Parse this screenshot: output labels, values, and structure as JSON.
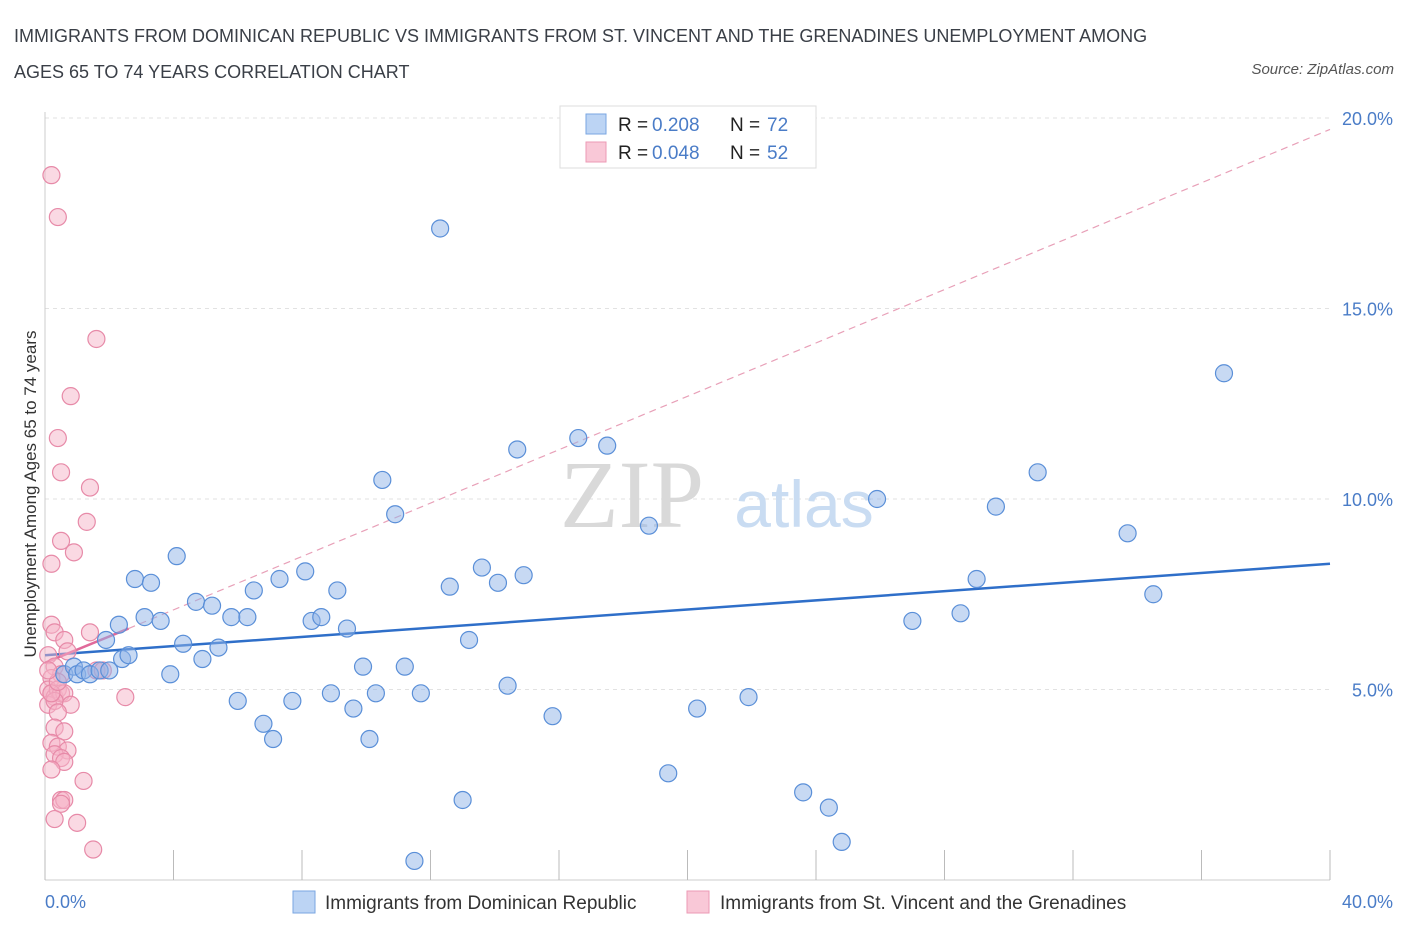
{
  "title_line1": "IMMIGRANTS FROM DOMINICAN REPUBLIC VS IMMIGRANTS FROM ST. VINCENT AND THE GRENADINES UNEMPLOYMENT AMONG",
  "title_line2": "AGES 65 TO 74 YEARS CORRELATION CHART",
  "source": "Source: ZipAtlas.com",
  "watermark": {
    "zip": "ZIP",
    "atlas": "atlas"
  },
  "chart_data": {
    "type": "scatter",
    "ylabel": "Unemployment Among Ages 65 to 74 years",
    "x_range": [
      0,
      40
    ],
    "y_range": [
      0,
      20
    ],
    "x_ticks": [
      "0.0%",
      "40.0%"
    ],
    "y_ticks": [
      "5.0%",
      "10.0%",
      "15.0%",
      "20.0%"
    ],
    "grid": true,
    "legend_position": "top-center",
    "series": [
      {
        "name": "Immigrants from Dominican Republic",
        "color": "#8fb4e8",
        "stroke": "#5a8fd8",
        "line_color": "#2f6fc9",
        "R": "0.208",
        "N": "72",
        "trend": [
          [
            0,
            5.9
          ],
          [
            40,
            8.3
          ]
        ],
        "points": [
          [
            0.6,
            5.4
          ],
          [
            0.9,
            5.6
          ],
          [
            1.0,
            5.4
          ],
          [
            1.2,
            5.5
          ],
          [
            1.4,
            5.4
          ],
          [
            1.7,
            5.5
          ],
          [
            1.9,
            6.3
          ],
          [
            2.0,
            5.5
          ],
          [
            2.3,
            6.7
          ],
          [
            2.4,
            5.8
          ],
          [
            2.6,
            5.9
          ],
          [
            2.8,
            7.9
          ],
          [
            3.1,
            6.9
          ],
          [
            3.3,
            7.8
          ],
          [
            3.6,
            6.8
          ],
          [
            3.9,
            5.4
          ],
          [
            4.1,
            8.5
          ],
          [
            4.3,
            6.2
          ],
          [
            4.7,
            7.3
          ],
          [
            4.9,
            5.8
          ],
          [
            5.2,
            7.2
          ],
          [
            5.4,
            6.1
          ],
          [
            5.8,
            6.9
          ],
          [
            6.0,
            4.7
          ],
          [
            6.3,
            6.9
          ],
          [
            6.5,
            7.6
          ],
          [
            6.8,
            4.1
          ],
          [
            7.1,
            3.7
          ],
          [
            7.3,
            7.9
          ],
          [
            7.7,
            4.7
          ],
          [
            8.1,
            8.1
          ],
          [
            8.3,
            6.8
          ],
          [
            8.6,
            6.9
          ],
          [
            8.9,
            4.9
          ],
          [
            9.1,
            7.6
          ],
          [
            9.4,
            6.6
          ],
          [
            9.6,
            4.5
          ],
          [
            9.9,
            5.6
          ],
          [
            10.1,
            3.7
          ],
          [
            10.3,
            4.9
          ],
          [
            10.5,
            10.5
          ],
          [
            10.9,
            9.6
          ],
          [
            11.2,
            5.6
          ],
          [
            11.7,
            4.9
          ],
          [
            12.3,
            17.1
          ],
          [
            12.6,
            7.7
          ],
          [
            13.0,
            2.1
          ],
          [
            13.2,
            6.3
          ],
          [
            13.6,
            8.2
          ],
          [
            14.1,
            7.8
          ],
          [
            14.4,
            5.1
          ],
          [
            14.7,
            11.3
          ],
          [
            14.9,
            8.0
          ],
          [
            15.8,
            4.3
          ],
          [
            16.6,
            11.6
          ],
          [
            17.5,
            11.4
          ],
          [
            18.8,
            9.3
          ],
          [
            19.4,
            2.8
          ],
          [
            20.3,
            4.5
          ],
          [
            21.9,
            4.8
          ],
          [
            23.6,
            2.3
          ],
          [
            24.4,
            1.9
          ],
          [
            24.8,
            1.0
          ],
          [
            25.9,
            10.0
          ],
          [
            27.0,
            6.8
          ],
          [
            28.5,
            7.0
          ],
          [
            29.0,
            7.9
          ],
          [
            29.6,
            9.8
          ],
          [
            30.9,
            10.7
          ],
          [
            33.7,
            9.1
          ],
          [
            34.5,
            7.5
          ],
          [
            36.7,
            13.3
          ],
          [
            11.5,
            0.5
          ]
        ]
      },
      {
        "name": "Immigrants from St. Vincent and the Grenadines",
        "color": "#f5b3c8",
        "stroke": "#e78aa8",
        "line_color": "#e0699a",
        "R": "0.048",
        "N": "52",
        "trend": [
          [
            0,
            5.7
          ],
          [
            2.6,
            6.6
          ]
        ],
        "trend_ext": [
          [
            2.6,
            6.6
          ],
          [
            40,
            19.7
          ]
        ],
        "points": [
          [
            0.2,
            18.5
          ],
          [
            0.4,
            17.4
          ],
          [
            1.6,
            14.2
          ],
          [
            0.8,
            12.7
          ],
          [
            0.4,
            11.6
          ],
          [
            0.5,
            10.7
          ],
          [
            1.4,
            10.3
          ],
          [
            1.3,
            9.4
          ],
          [
            0.5,
            8.9
          ],
          [
            0.9,
            8.6
          ],
          [
            0.2,
            8.3
          ],
          [
            0.2,
            6.7
          ],
          [
            0.3,
            6.5
          ],
          [
            0.6,
            6.3
          ],
          [
            0.7,
            6.0
          ],
          [
            1.4,
            6.5
          ],
          [
            0.1,
            5.9
          ],
          [
            0.3,
            5.6
          ],
          [
            0.5,
            5.4
          ],
          [
            0.2,
            5.3
          ],
          [
            1.6,
            5.5
          ],
          [
            1.8,
            5.5
          ],
          [
            0.1,
            5.0
          ],
          [
            0.2,
            4.9
          ],
          [
            0.3,
            4.8
          ],
          [
            0.4,
            5.0
          ],
          [
            0.5,
            4.9
          ],
          [
            0.6,
            4.9
          ],
          [
            0.1,
            4.6
          ],
          [
            0.3,
            4.7
          ],
          [
            0.8,
            4.6
          ],
          [
            2.5,
            4.8
          ],
          [
            0.4,
            4.4
          ],
          [
            0.3,
            4.0
          ],
          [
            0.6,
            3.9
          ],
          [
            0.2,
            3.6
          ],
          [
            0.4,
            3.5
          ],
          [
            0.7,
            3.4
          ],
          [
            0.3,
            3.3
          ],
          [
            0.5,
            3.2
          ],
          [
            0.6,
            3.1
          ],
          [
            0.2,
            2.9
          ],
          [
            1.2,
            2.6
          ],
          [
            0.5,
            2.1
          ],
          [
            0.6,
            2.1
          ],
          [
            0.5,
            2.0
          ],
          [
            0.3,
            1.6
          ],
          [
            1.0,
            1.5
          ],
          [
            1.5,
            0.8
          ],
          [
            0.2,
            4.9
          ],
          [
            0.4,
            5.2
          ],
          [
            0.1,
            5.5
          ]
        ]
      }
    ]
  }
}
